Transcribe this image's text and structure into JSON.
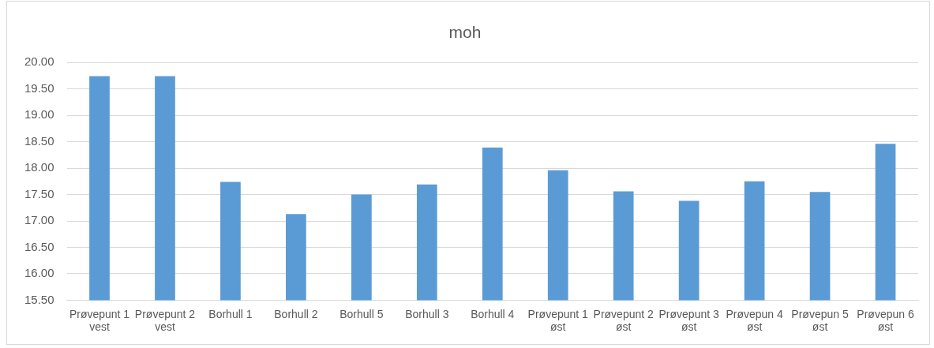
{
  "chart_data": {
    "type": "bar",
    "title": "moh",
    "categories": [
      "Prøvepunt 1 vest",
      "Prøvepunt 2 vest",
      "Borhull 1",
      "Borhull 2",
      "Borhull 5",
      "Borhull 3",
      "Borhull 4",
      "Prøvepunt 1 øst",
      "Prøvepunt 2 øst",
      "Prøvepunt 3 øst",
      "Prøvepun 4 øst",
      "Prøvepun 5 øst",
      "Prøvepun 6 øst"
    ],
    "values": [
      19.74,
      19.74,
      17.74,
      17.13,
      17.5,
      17.69,
      18.39,
      17.96,
      17.56,
      17.38,
      17.75,
      17.55,
      18.46
    ],
    "color": "#5b9bd5",
    "ylim": [
      15.5,
      20
    ],
    "yticks": [
      {
        "value": 15.5,
        "label": "15.50"
      },
      {
        "value": 16,
        "label": "16.00"
      },
      {
        "value": 16.5,
        "label": "16.50"
      },
      {
        "value": 17,
        "label": "17.00"
      },
      {
        "value": 17.5,
        "label": "17.50"
      },
      {
        "value": 18,
        "label": "18.00"
      },
      {
        "value": 18.5,
        "label": "18.50"
      },
      {
        "value": 19,
        "label": "19.00"
      },
      {
        "value": 19.5,
        "label": "19.50"
      },
      {
        "value": 20,
        "label": "20.00"
      }
    ],
    "grid": "y",
    "legend": false
  }
}
